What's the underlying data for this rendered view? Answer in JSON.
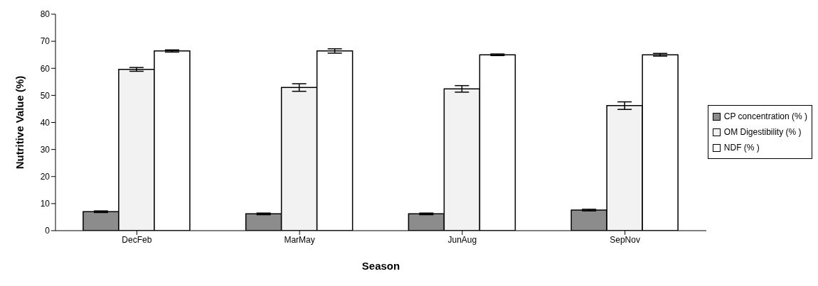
{
  "chart_data": {
    "type": "bar",
    "xlabel": "Season",
    "ylabel": "Nutritive Value (%)",
    "categories": [
      "DecFeb",
      "MarMay",
      "JunAug",
      "SepNov"
    ],
    "series": [
      {
        "name": "CP concentration (% )",
        "color": "#8c8c8c",
        "values": [
          7,
          6.2,
          6.2,
          7.6
        ],
        "errors": [
          0.3,
          0.3,
          0.3,
          0.3
        ]
      },
      {
        "name": "OM Digestibility (% )",
        "color": "#f2f2f2",
        "values": [
          59.6,
          52.9,
          52.4,
          46.2
        ],
        "errors": [
          0.7,
          1.4,
          1.2,
          1.4
        ]
      },
      {
        "name": "NDF (% )",
        "color": "#ffffff",
        "values": [
          66.4,
          66.4,
          65,
          65
        ],
        "errors": [
          0.4,
          0.8,
          0.3,
          0.5
        ]
      }
    ],
    "ylim": [
      0,
      80
    ],
    "yticks": [
      0,
      10,
      20,
      30,
      40,
      50,
      60,
      70,
      80
    ],
    "grid": false,
    "legend": "right"
  }
}
